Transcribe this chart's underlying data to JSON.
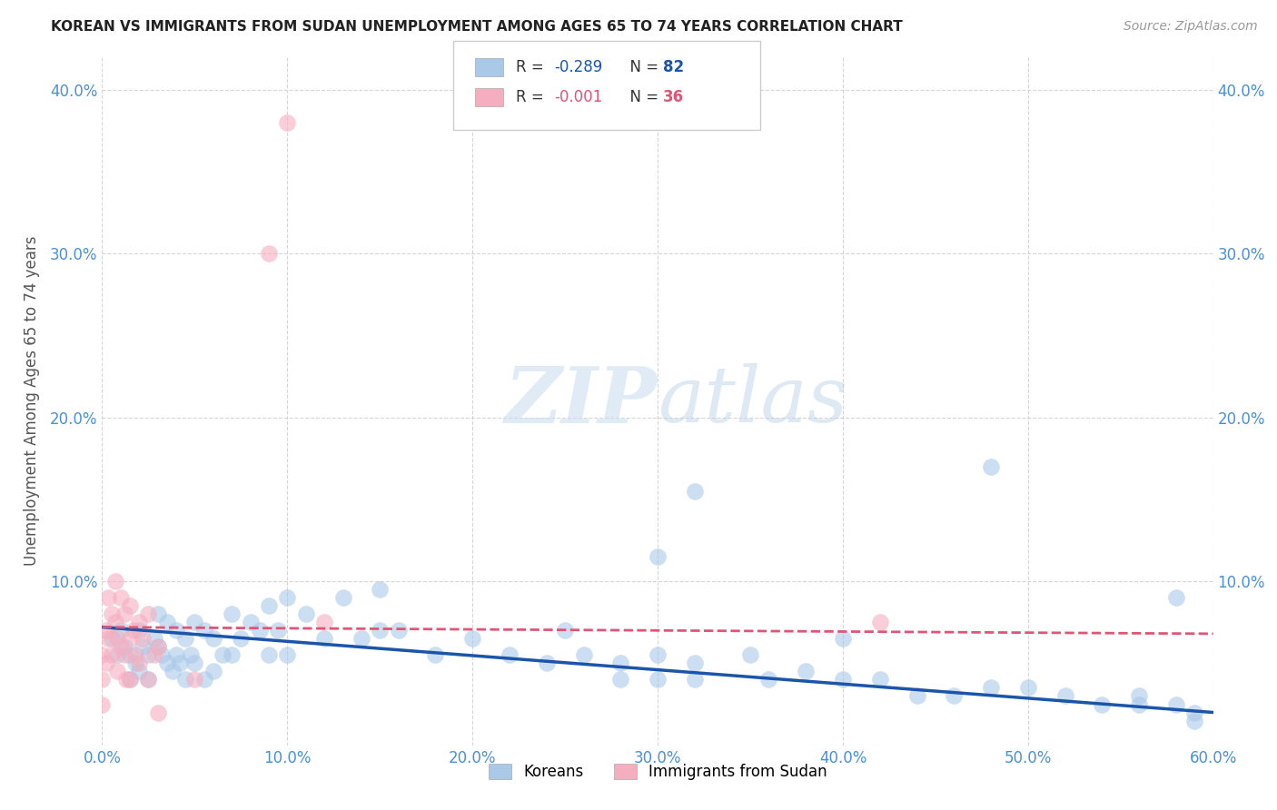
{
  "title": "KOREAN VS IMMIGRANTS FROM SUDAN UNEMPLOYMENT AMONG AGES 65 TO 74 YEARS CORRELATION CHART",
  "source": "Source: ZipAtlas.com",
  "ylabel": "Unemployment Among Ages 65 to 74 years",
  "xlim": [
    0.0,
    0.6
  ],
  "ylim": [
    0.0,
    0.42
  ],
  "x_ticks": [
    0.0,
    0.1,
    0.2,
    0.3,
    0.4,
    0.5,
    0.6
  ],
  "x_tick_labels": [
    "0.0%",
    "10.0%",
    "20.0%",
    "30.0%",
    "40.0%",
    "50.0%",
    "60.0%"
  ],
  "y_ticks": [
    0.0,
    0.1,
    0.2,
    0.3,
    0.4
  ],
  "y_tick_labels": [
    "",
    "10.0%",
    "20.0%",
    "30.0%",
    "40.0%"
  ],
  "watermark_zip": "ZIP",
  "watermark_atlas": "atlas",
  "legend_korean_r": "-0.289",
  "legend_korean_n": "82",
  "legend_sudan_r": "-0.001",
  "legend_sudan_n": "36",
  "korean_color": "#aac8e8",
  "sudan_color": "#f5aec0",
  "korean_line_color": "#1a55aa",
  "sudan_line_color": "#e05575",
  "bg_color": "#ffffff",
  "grid_color": "#cccccc",
  "title_color": "#222222",
  "axis_label_color": "#555555",
  "tick_color": "#4a90d9",
  "korean_scatter_x": [
    0.005,
    0.008,
    0.01,
    0.012,
    0.015,
    0.015,
    0.018,
    0.02,
    0.02,
    0.022,
    0.025,
    0.025,
    0.028,
    0.03,
    0.03,
    0.032,
    0.035,
    0.035,
    0.038,
    0.04,
    0.04,
    0.042,
    0.045,
    0.045,
    0.048,
    0.05,
    0.05,
    0.055,
    0.055,
    0.06,
    0.06,
    0.065,
    0.07,
    0.07,
    0.075,
    0.08,
    0.085,
    0.09,
    0.09,
    0.095,
    0.1,
    0.1,
    0.11,
    0.12,
    0.13,
    0.14,
    0.15,
    0.16,
    0.18,
    0.2,
    0.22,
    0.24,
    0.25,
    0.26,
    0.28,
    0.28,
    0.3,
    0.3,
    0.32,
    0.32,
    0.35,
    0.36,
    0.38,
    0.4,
    0.4,
    0.42,
    0.44,
    0.46,
    0.48,
    0.5,
    0.52,
    0.54,
    0.56,
    0.56,
    0.58,
    0.59,
    0.59,
    0.32,
    0.48,
    0.58,
    0.3,
    0.15
  ],
  "korean_scatter_y": [
    0.065,
    0.055,
    0.07,
    0.06,
    0.055,
    0.04,
    0.05,
    0.07,
    0.045,
    0.06,
    0.055,
    0.04,
    0.065,
    0.08,
    0.06,
    0.055,
    0.075,
    0.05,
    0.045,
    0.07,
    0.055,
    0.05,
    0.065,
    0.04,
    0.055,
    0.075,
    0.05,
    0.07,
    0.04,
    0.065,
    0.045,
    0.055,
    0.08,
    0.055,
    0.065,
    0.075,
    0.07,
    0.085,
    0.055,
    0.07,
    0.09,
    0.055,
    0.08,
    0.065,
    0.09,
    0.065,
    0.07,
    0.07,
    0.055,
    0.065,
    0.055,
    0.05,
    0.07,
    0.055,
    0.05,
    0.04,
    0.055,
    0.04,
    0.05,
    0.04,
    0.055,
    0.04,
    0.045,
    0.065,
    0.04,
    0.04,
    0.03,
    0.03,
    0.035,
    0.035,
    0.03,
    0.025,
    0.03,
    0.025,
    0.025,
    0.02,
    0.015,
    0.155,
    0.17,
    0.09,
    0.115,
    0.095
  ],
  "sudan_scatter_x": [
    0.0,
    0.0,
    0.0,
    0.002,
    0.002,
    0.003,
    0.003,
    0.005,
    0.005,
    0.007,
    0.007,
    0.008,
    0.008,
    0.01,
    0.01,
    0.012,
    0.012,
    0.013,
    0.015,
    0.015,
    0.015,
    0.017,
    0.018,
    0.02,
    0.02,
    0.022,
    0.025,
    0.025,
    0.028,
    0.03,
    0.03,
    0.05,
    0.09,
    0.1,
    0.12,
    0.42
  ],
  "sudan_scatter_y": [
    0.055,
    0.04,
    0.025,
    0.07,
    0.05,
    0.09,
    0.065,
    0.08,
    0.055,
    0.1,
    0.075,
    0.065,
    0.045,
    0.09,
    0.06,
    0.08,
    0.055,
    0.04,
    0.085,
    0.065,
    0.04,
    0.07,
    0.055,
    0.075,
    0.05,
    0.065,
    0.08,
    0.04,
    0.055,
    0.06,
    0.02,
    0.04,
    0.3,
    0.38,
    0.075,
    0.075
  ]
}
